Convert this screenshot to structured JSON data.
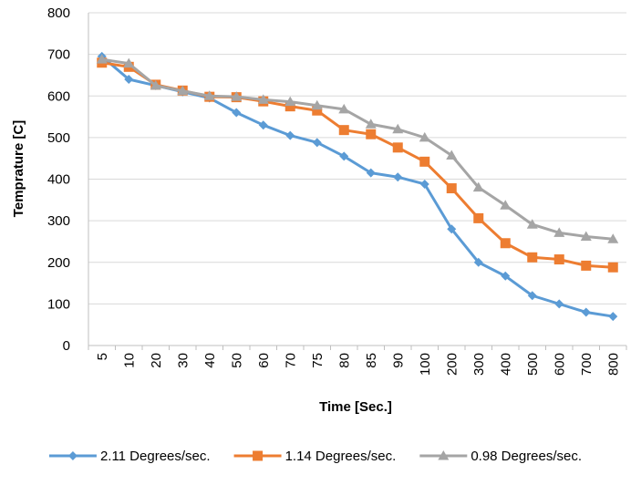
{
  "chart_data": {
    "type": "line",
    "title": "",
    "xlabel": "Time [Sec.]",
    "ylabel": "Temprature [C]",
    "categories": [
      "5",
      "10",
      "20",
      "30",
      "40",
      "50",
      "60",
      "70",
      "75",
      "80",
      "85",
      "90",
      "100",
      "200",
      "300",
      "400",
      "500",
      "600",
      "700",
      "800"
    ],
    "ylim": [
      0,
      800
    ],
    "yticks": [
      0,
      100,
      200,
      300,
      400,
      500,
      600,
      700,
      800
    ],
    "grid": "horizontal",
    "legend_position": "bottom",
    "series": [
      {
        "name": "2.11 Degrees/sec.",
        "color": "#5B9BD5",
        "marker": "diamond",
        "values": [
          695,
          640,
          625,
          610,
          595,
          560,
          530,
          505,
          488,
          455,
          415,
          405,
          388,
          280,
          200,
          167,
          120,
          100,
          80,
          70
        ]
      },
      {
        "name": "1.14 Degrees/sec.",
        "color": "#ED7D31",
        "marker": "square",
        "values": [
          680,
          670,
          627,
          613,
          598,
          597,
          587,
          575,
          565,
          518,
          508,
          476,
          442,
          378,
          306,
          246,
          212,
          207,
          192,
          188
        ]
      },
      {
        "name": "0.98 Degrees/sec.",
        "color": "#A5A5A5",
        "marker": "triangle",
        "values": [
          688,
          678,
          625,
          612,
          600,
          598,
          591,
          586,
          577,
          568,
          532,
          520,
          500,
          457,
          380,
          337,
          291,
          271,
          262,
          256
        ]
      }
    ]
  }
}
